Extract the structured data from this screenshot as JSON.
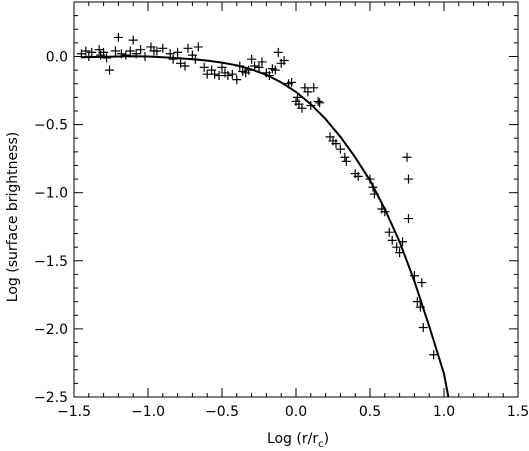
{
  "chart_data": {
    "type": "scatter",
    "xlabel": "Log (r/r",
    "xlabel_subscript": "c",
    "xlabel_close": ")",
    "ylabel": "Log (surface brightness)",
    "xlim": [
      -1.5,
      1.5
    ],
    "ylim": [
      -2.5,
      0.4
    ],
    "x_ticks": [
      -1.5,
      -1.0,
      -0.5,
      0.0,
      0.5,
      1.0,
      1.5
    ],
    "x_tick_labels": [
      "−1.5",
      "−1.0",
      "−0.5",
      "0.0",
      "0.5",
      "1.0",
      "1.5"
    ],
    "y_ticks": [
      0.0,
      -0.5,
      -1.0,
      -1.5,
      -2.0,
      -2.5
    ],
    "y_tick_labels": [
      "0.0",
      "−0.5",
      "−1.0",
      "−1.5",
      "−2.0",
      "−2.5"
    ],
    "grid": false,
    "marker": "plus",
    "series": [
      {
        "kind": "points",
        "points": [
          [
            -1.45,
            0.02
          ],
          [
            -1.42,
            0.04
          ],
          [
            -1.4,
            0.0
          ],
          [
            -1.38,
            0.03
          ],
          [
            -1.33,
            0.05
          ],
          [
            -1.32,
            0.01
          ],
          [
            -1.3,
            0.03
          ],
          [
            -1.28,
            -0.01
          ],
          [
            -1.26,
            -0.1
          ],
          [
            -1.22,
            0.04
          ],
          [
            -1.2,
            0.14
          ],
          [
            -1.18,
            0.02
          ],
          [
            -1.15,
            0.01
          ],
          [
            -1.12,
            0.04
          ],
          [
            -1.1,
            0.12
          ],
          [
            -1.08,
            0.02
          ],
          [
            -1.05,
            0.05
          ],
          [
            -1.02,
            0.0
          ],
          [
            -0.98,
            0.07
          ],
          [
            -0.96,
            0.04
          ],
          [
            -0.94,
            0.04
          ],
          [
            -0.9,
            0.06
          ],
          [
            -0.85,
            0.02
          ],
          [
            -0.83,
            -0.02
          ],
          [
            -0.8,
            0.03
          ],
          [
            -0.78,
            -0.05
          ],
          [
            -0.75,
            -0.07
          ],
          [
            -0.73,
            0.06
          ],
          [
            -0.7,
            0.01
          ],
          [
            -0.68,
            -0.02
          ],
          [
            -0.66,
            0.07
          ],
          [
            -0.62,
            -0.08
          ],
          [
            -0.6,
            -0.13
          ],
          [
            -0.57,
            -0.1
          ],
          [
            -0.55,
            -0.13
          ],
          [
            -0.52,
            -0.14
          ],
          [
            -0.5,
            -0.08
          ],
          [
            -0.48,
            -0.12
          ],
          [
            -0.46,
            -0.14
          ],
          [
            -0.43,
            -0.13
          ],
          [
            -0.4,
            -0.17
          ],
          [
            -0.38,
            -0.07
          ],
          [
            -0.36,
            -0.11
          ],
          [
            -0.34,
            -0.12
          ],
          [
            -0.32,
            -0.1
          ],
          [
            -0.3,
            -0.02
          ],
          [
            -0.28,
            -0.07
          ],
          [
            -0.25,
            -0.08
          ],
          [
            -0.23,
            -0.04
          ],
          [
            -0.2,
            -0.12
          ],
          [
            -0.18,
            -0.14
          ],
          [
            -0.16,
            -0.09
          ],
          [
            -0.14,
            -0.1
          ],
          [
            -0.12,
            0.03
          ],
          [
            -0.1,
            -0.05
          ],
          [
            -0.08,
            -0.03
          ],
          [
            -0.05,
            -0.2
          ],
          [
            -0.03,
            -0.19
          ],
          [
            0.0,
            -0.33
          ],
          [
            0.01,
            -0.3
          ],
          [
            0.02,
            -0.35
          ],
          [
            0.04,
            -0.38
          ],
          [
            0.06,
            -0.23
          ],
          [
            0.08,
            -0.26
          ],
          [
            0.1,
            -0.36
          ],
          [
            0.12,
            -0.23
          ],
          [
            0.15,
            -0.33
          ],
          [
            0.16,
            -0.34
          ],
          [
            0.23,
            -0.59
          ],
          [
            0.25,
            -0.62
          ],
          [
            0.27,
            -0.64
          ],
          [
            0.3,
            -0.68
          ],
          [
            0.33,
            -0.74
          ],
          [
            0.34,
            -0.77
          ],
          [
            0.4,
            -0.86
          ],
          [
            0.42,
            -0.88
          ],
          [
            0.5,
            -0.9
          ],
          [
            0.52,
            -0.96
          ],
          [
            0.53,
            -1.01
          ],
          [
            0.58,
            -1.12
          ],
          [
            0.6,
            -1.14
          ],
          [
            0.63,
            -1.29
          ],
          [
            0.65,
            -1.35
          ],
          [
            0.68,
            -1.4
          ],
          [
            0.7,
            -1.44
          ],
          [
            0.72,
            -1.36
          ],
          [
            0.75,
            -0.74
          ],
          [
            0.76,
            -0.9
          ],
          [
            0.76,
            -1.19
          ],
          [
            0.8,
            -1.61
          ],
          [
            0.82,
            -1.8
          ],
          [
            0.84,
            -1.84
          ],
          [
            0.85,
            -1.66
          ],
          [
            0.86,
            -1.99
          ],
          [
            0.93,
            -2.19
          ]
        ]
      },
      {
        "kind": "line",
        "points": [
          [
            -1.45,
            -0.005
          ],
          [
            -1.3,
            -0.003
          ],
          [
            -1.2,
            0.0
          ],
          [
            -1.1,
            0.002
          ],
          [
            -1.0,
            0.0
          ],
          [
            -0.9,
            -0.005
          ],
          [
            -0.8,
            -0.012
          ],
          [
            -0.7,
            -0.02
          ],
          [
            -0.6,
            -0.03
          ],
          [
            -0.5,
            -0.045
          ],
          [
            -0.4,
            -0.065
          ],
          [
            -0.3,
            -0.095
          ],
          [
            -0.2,
            -0.135
          ],
          [
            -0.1,
            -0.19
          ],
          [
            0.0,
            -0.26
          ],
          [
            0.1,
            -0.35
          ],
          [
            0.2,
            -0.46
          ],
          [
            0.3,
            -0.59
          ],
          [
            0.4,
            -0.74
          ],
          [
            0.5,
            -0.91
          ],
          [
            0.6,
            -1.12
          ],
          [
            0.7,
            -1.36
          ],
          [
            0.8,
            -1.65
          ],
          [
            0.9,
            -1.98
          ],
          [
            1.0,
            -2.33
          ],
          [
            1.03,
            -2.5
          ]
        ]
      }
    ]
  }
}
